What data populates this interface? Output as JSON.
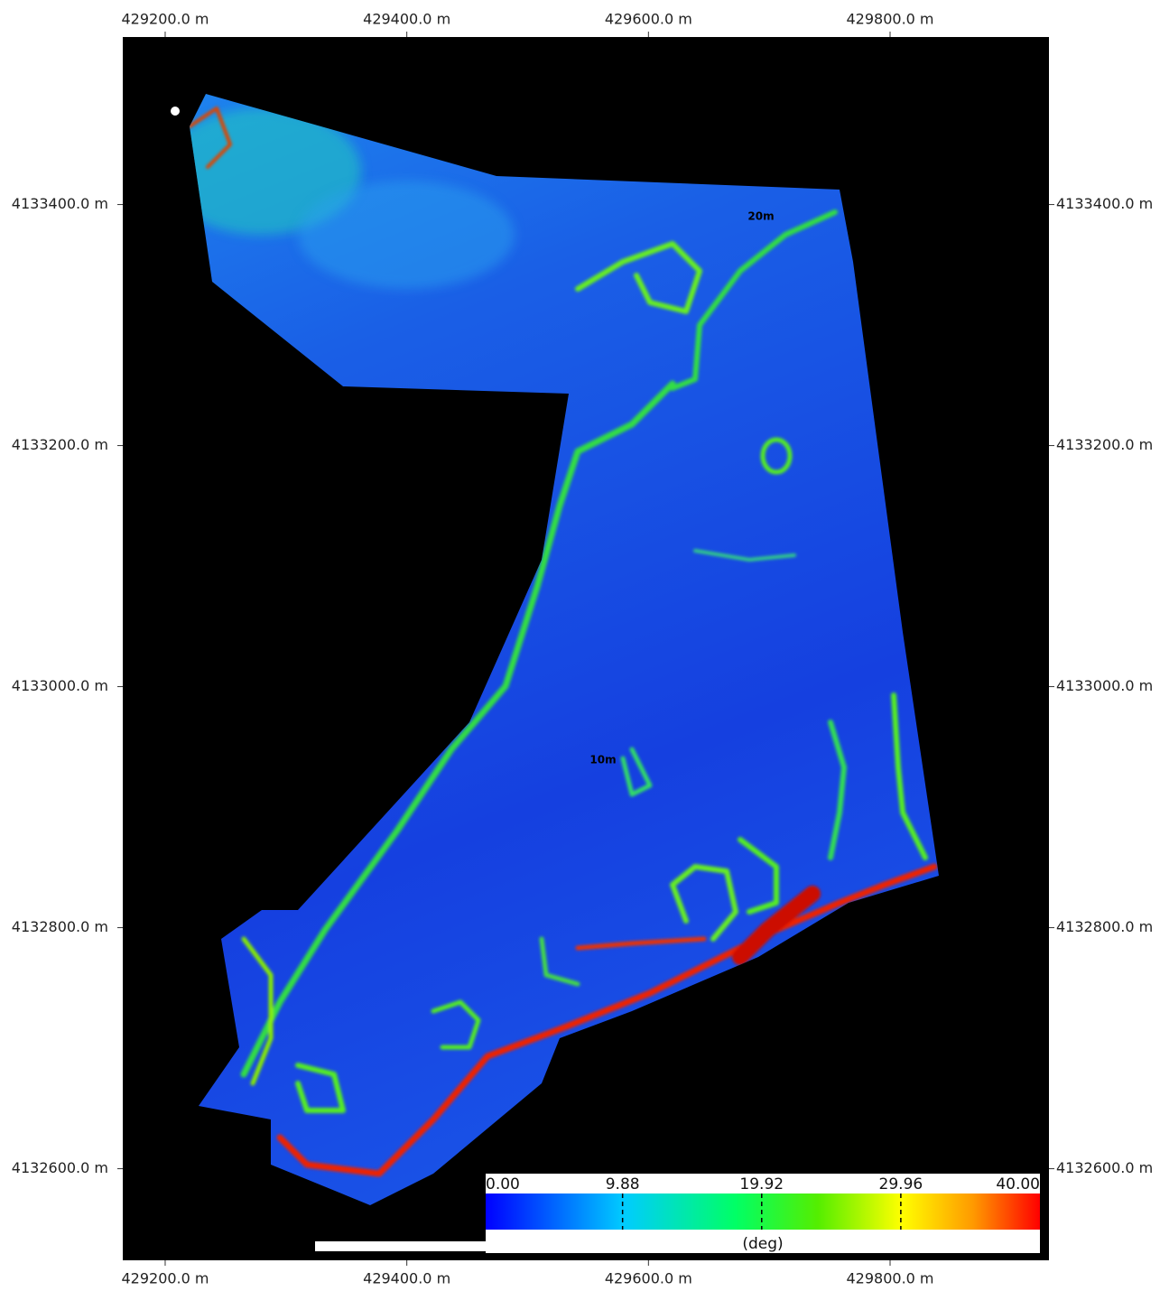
{
  "map": {
    "xlim": [
      429164.9,
      429931.5
    ],
    "ylim": [
      4132524,
      4133539
    ],
    "xticks": [
      {
        "value": 429200,
        "label": "429200.0 m"
      },
      {
        "value": 429400,
        "label": "429400.0 m"
      },
      {
        "value": 429600,
        "label": "429600.0 m"
      },
      {
        "value": 429800,
        "label": "429800.0 m"
      }
    ],
    "yticks": [
      {
        "value": 4133400,
        "label": "4133400.0 m"
      },
      {
        "value": 4133200,
        "label": "4133200.0 m"
      },
      {
        "value": 4133000,
        "label": "4133000.0 m"
      },
      {
        "value": 4132800,
        "label": "4132800.0 m"
      },
      {
        "value": 4132600,
        "label": "4132600.0 m"
      }
    ],
    "annotations": [
      "20m",
      "10m"
    ],
    "colorbar": {
      "ticks": [
        {
          "value": 0,
          "label": "0.00"
        },
        9.88,
        19.92,
        29.96,
        {
          "value": 40,
          "label": "40.00"
        }
      ],
      "unit": "(deg)"
    }
  }
}
